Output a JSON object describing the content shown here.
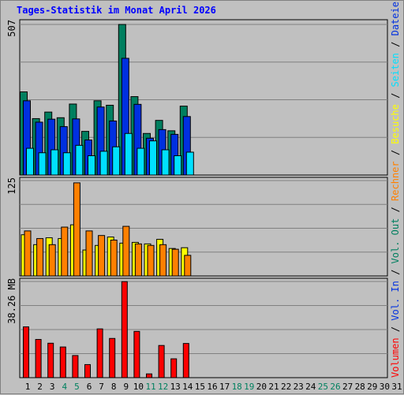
{
  "chart_data": {
    "type": "bar",
    "title": "Tages-Statistik im Monat April 2026",
    "days": [
      "1",
      "2",
      "3",
      "4",
      "5",
      "6",
      "7",
      "8",
      "9",
      "10",
      "11",
      "12",
      "13",
      "14",
      "15",
      "16",
      "17",
      "18",
      "19",
      "20",
      "21",
      "22",
      "23",
      "24",
      "25",
      "26",
      "27",
      "28",
      "29",
      "30",
      "31"
    ],
    "weekend_days": [
      "4",
      "5",
      "11",
      "12",
      "18",
      "19",
      "25",
      "26"
    ],
    "panels": [
      {
        "id": "hits",
        "ymax_label": "507",
        "ymax": 507,
        "series": [
          {
            "name": "Anfragen",
            "color": "#007f5f",
            "values": [
              280,
              190,
              212,
              193,
              239,
              147,
              250,
              235,
              507,
              264,
              140,
              184,
              149,
              232
            ]
          },
          {
            "name": "Dateien",
            "color": "#0030e0",
            "values": [
              250,
              178,
              188,
              163,
              189,
              118,
              229,
              182,
              393,
              238,
              124,
              153,
              137,
              197
            ]
          },
          {
            "name": "Seiten",
            "color": "#00e0ff",
            "values": [
              90,
              75,
              85,
              75,
              100,
              65,
              80,
              95,
              140,
              90,
              115,
              85,
              65,
              77
            ]
          }
        ]
      },
      {
        "id": "visits",
        "ymax_label": "125",
        "ymax": 125,
        "series": [
          {
            "name": "Besuche",
            "color": "#ffff00",
            "values": [
              54,
              41,
              50,
              49,
              67,
              34,
              40,
              51,
              43,
              44,
              42,
              48,
              36,
              37
            ]
          },
          {
            "name": "Rechner",
            "color": "#ff8000",
            "values": [
              59,
              49,
              41,
              64,
              122,
              59,
              53,
              47,
              65,
              42,
              40,
              41,
              35,
              27
            ]
          }
        ]
      },
      {
        "id": "volume",
        "ymax_label": "38.26 MB",
        "ymax": 38.26,
        "series": [
          {
            "name": "Volumen",
            "color": "#ff0000",
            "values": [
              20.2,
              15.2,
              13.7,
              12.2,
              8.8,
              5.2,
              19.4,
              15.6,
              38.2,
              18.4,
              1.5,
              12.8,
              7.5,
              13.6
            ]
          }
        ]
      }
    ],
    "right_legend": [
      {
        "text": "Volumen",
        "color": "#ff0000"
      },
      {
        "text": " / ",
        "color": "#000000"
      },
      {
        "text": "Vol. In",
        "color": "#0030e0"
      },
      {
        "text": " / ",
        "color": "#000000"
      },
      {
        "text": "Vol. Out",
        "color": "#007f5f"
      },
      {
        "text": " / ",
        "color": "#000000"
      },
      {
        "text": "Rechner",
        "color": "#ff8000"
      },
      {
        "text": " / ",
        "color": "#000000"
      },
      {
        "text": "Besuche",
        "color": "#ffff00"
      },
      {
        "text": " / ",
        "color": "#000000"
      },
      {
        "text": "Seiten",
        "color": "#00e0ff"
      },
      {
        "text": " / ",
        "color": "#000000"
      },
      {
        "text": "Dateien",
        "color": "#0030e0"
      },
      {
        "text": " / ",
        "color": "#000000"
      },
      {
        "text": "Anfragen",
        "color": "#007f5f"
      }
    ],
    "colors": {
      "title": "#0000ff",
      "weekend": "#00805f",
      "weekday": "#000000",
      "plot_bg": "#c0c0c0",
      "grid": "#808080"
    },
    "grid": true
  }
}
